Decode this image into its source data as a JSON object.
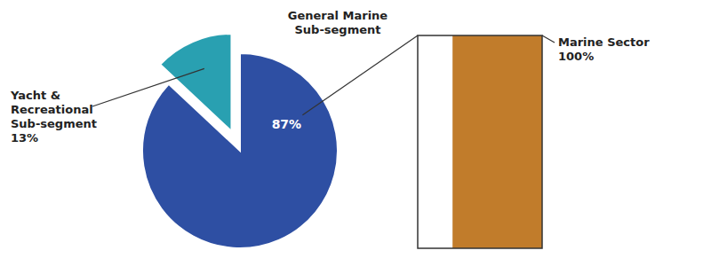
{
  "chart_data": {
    "type": "pie",
    "categories": [
      "General Marine\nSub-segment",
      "Yacht &\nRecreational\nSub-segment"
    ],
    "values": [
      87,
      13
    ],
    "value_labels": [
      "87%",
      "13%"
    ],
    "colors": [
      "#2E4FA3",
      "#29A0B1"
    ],
    "total": {
      "label": "Marine Sector",
      "value": 100,
      "value_label": "100%",
      "color": "#C17C2B"
    }
  }
}
